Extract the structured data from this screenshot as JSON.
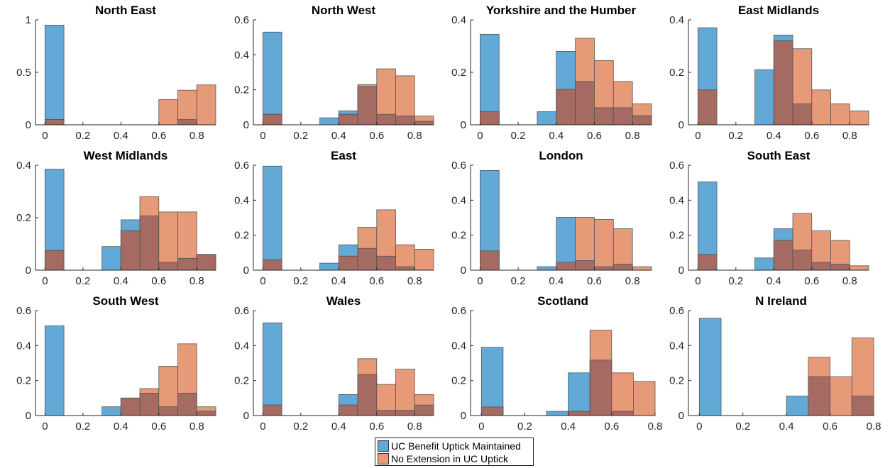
{
  "colors": {
    "blue": "#62a9d8",
    "orange": "#e79a77",
    "overlap": "#a56b62",
    "edge": "#555555"
  },
  "legend": {
    "items": [
      {
        "label": "UC Benefit Uptick Maintained",
        "color": "#62a9d8"
      },
      {
        "label": "No Extension in UC Uptick",
        "color": "#e79a77"
      }
    ]
  },
  "chart_data": [
    {
      "type": "bar",
      "title": "North East",
      "bin_starts": [
        0,
        0.1,
        0.2,
        0.3,
        0.4,
        0.5,
        0.6,
        0.7,
        0.8
      ],
      "bin_width": 0.1,
      "xlim": [
        -0.05,
        0.9
      ],
      "ylim": [
        0,
        1
      ],
      "xticks": [
        0,
        0.2,
        0.4,
        0.6,
        0.8
      ],
      "yticks": [
        0,
        0.5,
        1
      ],
      "ytick_labels": [
        "0",
        "0.5",
        "1"
      ],
      "series": [
        {
          "name": "UC Benefit Uptick Maintained",
          "values": [
            0.95,
            0,
            0,
            0,
            0,
            0,
            0,
            0.05,
            0
          ]
        },
        {
          "name": "No Extension in UC Uptick",
          "values": [
            0.05,
            0,
            0,
            0,
            0,
            0,
            0.24,
            0.33,
            0.38
          ]
        }
      ]
    },
    {
      "type": "bar",
      "title": "North West",
      "bin_starts": [
        0,
        0.1,
        0.2,
        0.3,
        0.4,
        0.5,
        0.6,
        0.7,
        0.8
      ],
      "bin_width": 0.1,
      "xlim": [
        -0.05,
        0.9
      ],
      "ylim": [
        0,
        0.6
      ],
      "xticks": [
        0,
        0.2,
        0.4,
        0.6,
        0.8
      ],
      "yticks": [
        0,
        0.2,
        0.4,
        0.6
      ],
      "ytick_labels": [
        "0",
        "0.2",
        "0.4",
        "0.6"
      ],
      "series": [
        {
          "name": "UC Benefit Uptick Maintained",
          "values": [
            0.53,
            0,
            0,
            0.04,
            0.08,
            0.22,
            0.06,
            0.05,
            0.02
          ]
        },
        {
          "name": "No Extension in UC Uptick",
          "values": [
            0.06,
            0,
            0,
            0,
            0.06,
            0.23,
            0.32,
            0.28,
            0.05
          ]
        }
      ]
    },
    {
      "type": "bar",
      "title": "Yorkshire and the Humber",
      "bin_starts": [
        0,
        0.1,
        0.2,
        0.3,
        0.4,
        0.5,
        0.6,
        0.7,
        0.8
      ],
      "bin_width": 0.1,
      "xlim": [
        -0.05,
        0.9
      ],
      "ylim": [
        0,
        0.4
      ],
      "xticks": [
        0,
        0.2,
        0.4,
        0.6,
        0.8
      ],
      "yticks": [
        0,
        0.2,
        0.4
      ],
      "ytick_labels": [
        "0",
        "0.2",
        "0.4"
      ],
      "series": [
        {
          "name": "UC Benefit Uptick Maintained",
          "values": [
            0.345,
            0,
            0,
            0.05,
            0.28,
            0.165,
            0.065,
            0.065,
            0.035
          ]
        },
        {
          "name": "No Extension in UC Uptick",
          "values": [
            0.05,
            0,
            0,
            0,
            0.135,
            0.33,
            0.245,
            0.165,
            0.08
          ]
        }
      ]
    },
    {
      "type": "bar",
      "title": "East Midlands",
      "bin_starts": [
        0,
        0.1,
        0.2,
        0.3,
        0.4,
        0.5,
        0.6,
        0.7,
        0.8
      ],
      "bin_width": 0.1,
      "xlim": [
        -0.05,
        0.9
      ],
      "ylim": [
        0,
        0.4
      ],
      "xticks": [
        0,
        0.2,
        0.4,
        0.6,
        0.8
      ],
      "yticks": [
        0,
        0.2,
        0.4
      ],
      "ytick_labels": [
        "0",
        "0.2",
        "0.4"
      ],
      "series": [
        {
          "name": "UC Benefit Uptick Maintained",
          "values": [
            0.37,
            0,
            0,
            0.21,
            0.342,
            0.08,
            0,
            0,
            0
          ]
        },
        {
          "name": "No Extension in UC Uptick",
          "values": [
            0.133,
            0,
            0,
            0,
            0.32,
            0.29,
            0.133,
            0.08,
            0.053
          ]
        }
      ]
    },
    {
      "type": "bar",
      "title": "West Midlands",
      "bin_starts": [
        0,
        0.1,
        0.2,
        0.3,
        0.4,
        0.5,
        0.6,
        0.7,
        0.8
      ],
      "bin_width": 0.1,
      "xlim": [
        -0.05,
        0.9
      ],
      "ylim": [
        0,
        0.4
      ],
      "xticks": [
        0,
        0.2,
        0.4,
        0.6,
        0.8
      ],
      "yticks": [
        0,
        0.2,
        0.4
      ],
      "ytick_labels": [
        "0",
        "0.2",
        "0.4"
      ],
      "series": [
        {
          "name": "UC Benefit Uptick Maintained",
          "values": [
            0.385,
            0,
            0,
            0.09,
            0.192,
            0.207,
            0.03,
            0.045,
            0.06
          ]
        },
        {
          "name": "No Extension in UC Uptick",
          "values": [
            0.075,
            0,
            0,
            0,
            0.15,
            0.28,
            0.222,
            0.222,
            0.06
          ]
        }
      ]
    },
    {
      "type": "bar",
      "title": "East",
      "bin_starts": [
        0,
        0.1,
        0.2,
        0.3,
        0.4,
        0.5,
        0.6,
        0.7,
        0.8
      ],
      "bin_width": 0.1,
      "xlim": [
        -0.05,
        0.9
      ],
      "ylim": [
        0,
        0.6
      ],
      "xticks": [
        0,
        0.2,
        0.4,
        0.6,
        0.8
      ],
      "yticks": [
        0,
        0.2,
        0.4,
        0.6
      ],
      "ytick_labels": [
        "0",
        "0.2",
        "0.4",
        "0.6"
      ],
      "series": [
        {
          "name": "UC Benefit Uptick Maintained",
          "values": [
            0.595,
            0,
            0,
            0.04,
            0.145,
            0.125,
            0.08,
            0.02,
            0
          ]
        },
        {
          "name": "No Extension in UC Uptick",
          "values": [
            0.06,
            0,
            0,
            0,
            0.08,
            0.245,
            0.345,
            0.145,
            0.12
          ]
        }
      ]
    },
    {
      "type": "bar",
      "title": "London",
      "bin_starts": [
        0,
        0.1,
        0.2,
        0.3,
        0.4,
        0.5,
        0.6,
        0.7,
        0.8
      ],
      "bin_width": 0.1,
      "xlim": [
        -0.05,
        0.9
      ],
      "ylim": [
        0,
        0.6
      ],
      "xticks": [
        0,
        0.2,
        0.4,
        0.6,
        0.8
      ],
      "yticks": [
        0,
        0.2,
        0.4,
        0.6
      ],
      "ytick_labels": [
        "0",
        "0.2",
        "0.4",
        "0.6"
      ],
      "series": [
        {
          "name": "UC Benefit Uptick Maintained",
          "values": [
            0.57,
            0,
            0,
            0.02,
            0.302,
            0.055,
            0.02,
            0.035,
            0
          ]
        },
        {
          "name": "No Extension in UC Uptick",
          "values": [
            0.11,
            0,
            0,
            0,
            0.045,
            0.302,
            0.29,
            0.237,
            0.02
          ]
        }
      ]
    },
    {
      "type": "bar",
      "title": "South East",
      "bin_starts": [
        0,
        0.1,
        0.2,
        0.3,
        0.4,
        0.5,
        0.6,
        0.7,
        0.8
      ],
      "bin_width": 0.1,
      "xlim": [
        -0.05,
        0.9
      ],
      "ylim": [
        0,
        0.6
      ],
      "xticks": [
        0,
        0.2,
        0.4,
        0.6,
        0.8
      ],
      "yticks": [
        0,
        0.2,
        0.4,
        0.6
      ],
      "ytick_labels": [
        "0",
        "0.2",
        "0.4",
        "0.6"
      ],
      "series": [
        {
          "name": "UC Benefit Uptick Maintained",
          "values": [
            0.505,
            0,
            0,
            0.07,
            0.237,
            0.115,
            0.045,
            0.035,
            0
          ]
        },
        {
          "name": "No Extension in UC Uptick",
          "values": [
            0.09,
            0,
            0,
            0,
            0.17,
            0.325,
            0.225,
            0.17,
            0.025
          ]
        }
      ]
    },
    {
      "type": "bar",
      "title": "South West",
      "bin_starts": [
        0,
        0.1,
        0.2,
        0.3,
        0.4,
        0.5,
        0.6,
        0.7,
        0.8
      ],
      "bin_width": 0.1,
      "xlim": [
        -0.05,
        0.9
      ],
      "ylim": [
        0,
        0.6
      ],
      "xticks": [
        0,
        0.2,
        0.4,
        0.6,
        0.8
      ],
      "yticks": [
        0,
        0.2,
        0.4,
        0.6
      ],
      "ytick_labels": [
        "0",
        "0.2",
        "0.4",
        "0.6"
      ],
      "series": [
        {
          "name": "UC Benefit Uptick Maintained",
          "values": [
            0.513,
            0,
            0,
            0.05,
            0.1,
            0.128,
            0.05,
            0.128,
            0.025
          ]
        },
        {
          "name": "No Extension in UC Uptick",
          "values": [
            0,
            0,
            0,
            0,
            0.1,
            0.154,
            0.282,
            0.41,
            0.05
          ]
        }
      ]
    },
    {
      "type": "bar",
      "title": "Wales",
      "bin_starts": [
        0,
        0.1,
        0.2,
        0.3,
        0.4,
        0.5,
        0.6,
        0.7,
        0.8
      ],
      "bin_width": 0.1,
      "xlim": [
        -0.05,
        0.9
      ],
      "ylim": [
        0,
        0.6
      ],
      "xticks": [
        0,
        0.2,
        0.4,
        0.6,
        0.8
      ],
      "yticks": [
        0,
        0.2,
        0.4,
        0.6
      ],
      "ytick_labels": [
        "0",
        "0.2",
        "0.4",
        "0.6"
      ],
      "series": [
        {
          "name": "UC Benefit Uptick Maintained",
          "values": [
            0.53,
            0,
            0,
            0,
            0.12,
            0.235,
            0.03,
            0.03,
            0.06
          ]
        },
        {
          "name": "No Extension in UC Uptick",
          "values": [
            0.06,
            0,
            0,
            0,
            0.06,
            0.325,
            0.178,
            0.265,
            0.12
          ]
        }
      ]
    },
    {
      "type": "bar",
      "title": "Scotland",
      "bin_starts": [
        0,
        0.1,
        0.2,
        0.3,
        0.4,
        0.5,
        0.6,
        0.7
      ],
      "bin_width": 0.1,
      "xlim": [
        -0.05,
        0.8
      ],
      "ylim": [
        0,
        0.6
      ],
      "xticks": [
        0,
        0.2,
        0.4,
        0.6,
        0.8
      ],
      "yticks": [
        0,
        0.2,
        0.4,
        0.6
      ],
      "ytick_labels": [
        "0",
        "0.2",
        "0.4",
        "0.6"
      ],
      "series": [
        {
          "name": "UC Benefit Uptick Maintained",
          "values": [
            0.39,
            0,
            0,
            0.024,
            0.244,
            0.317,
            0.024,
            0
          ]
        },
        {
          "name": "No Extension in UC Uptick",
          "values": [
            0.049,
            0,
            0,
            0,
            0.024,
            0.488,
            0.244,
            0.195
          ]
        }
      ]
    },
    {
      "type": "bar",
      "title": "N Ireland",
      "bin_starts": [
        0,
        0.1,
        0.2,
        0.3,
        0.4,
        0.5,
        0.6,
        0.7
      ],
      "bin_width": 0.1,
      "xlim": [
        -0.05,
        0.8
      ],
      "ylim": [
        0,
        0.6
      ],
      "xticks": [
        0,
        0.2,
        0.4,
        0.6,
        0.8
      ],
      "yticks": [
        0,
        0.2,
        0.4,
        0.6
      ],
      "ytick_labels": [
        "0",
        "0.2",
        "0.4",
        "0.6"
      ],
      "series": [
        {
          "name": "UC Benefit Uptick Maintained",
          "values": [
            0.556,
            0,
            0,
            0,
            0.111,
            0.222,
            0,
            0.111
          ]
        },
        {
          "name": "No Extension in UC Uptick",
          "values": [
            0,
            0,
            0,
            0,
            0,
            0.333,
            0.222,
            0.444
          ]
        }
      ]
    }
  ]
}
